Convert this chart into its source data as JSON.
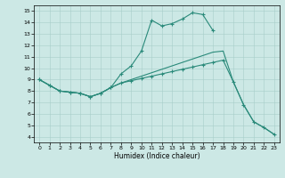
{
  "xlabel": "Humidex (Indice chaleur)",
  "xlim": [
    -0.5,
    23.5
  ],
  "ylim": [
    3.5,
    15.5
  ],
  "xticks": [
    0,
    1,
    2,
    3,
    4,
    5,
    6,
    7,
    8,
    9,
    10,
    11,
    12,
    13,
    14,
    15,
    16,
    17,
    18,
    19,
    20,
    21,
    22,
    23
  ],
  "yticks": [
    4,
    5,
    6,
    7,
    8,
    9,
    10,
    11,
    12,
    13,
    14,
    15
  ],
  "line_color": "#2a8a7a",
  "bg_color": "#cce8e5",
  "line1_x": [
    0,
    1,
    2,
    3,
    4,
    5,
    6,
    7,
    8,
    9,
    10,
    11,
    12,
    13,
    14,
    15,
    16,
    17
  ],
  "line1_y": [
    9.0,
    8.5,
    8.0,
    7.9,
    7.8,
    7.5,
    7.8,
    8.3,
    9.5,
    10.2,
    11.5,
    14.2,
    13.7,
    13.9,
    14.3,
    14.85,
    14.7,
    13.3
  ],
  "line2_x": [
    0,
    1,
    2,
    3,
    4,
    5,
    6,
    7,
    8,
    9,
    10,
    11,
    12,
    13,
    14,
    15,
    16,
    17,
    18,
    19,
    20,
    21,
    22,
    23
  ],
  "line2_y": [
    9.0,
    8.5,
    8.0,
    7.9,
    7.8,
    7.5,
    7.8,
    8.3,
    8.7,
    9.0,
    9.3,
    9.6,
    9.9,
    10.2,
    10.5,
    10.8,
    11.1,
    11.4,
    11.5,
    8.8,
    6.8,
    5.3,
    4.8,
    4.2
  ],
  "line3_x": [
    0,
    1,
    2,
    3,
    4,
    5,
    6,
    7,
    8,
    9,
    10,
    11,
    12,
    13,
    14,
    15,
    16,
    17,
    18,
    19,
    20,
    21,
    22,
    23
  ],
  "line3_y": [
    9.0,
    8.5,
    8.0,
    7.9,
    7.8,
    7.5,
    7.8,
    8.3,
    8.7,
    8.9,
    9.1,
    9.3,
    9.5,
    9.7,
    9.9,
    10.1,
    10.3,
    10.5,
    10.7,
    8.8,
    6.8,
    5.3,
    4.8,
    4.2
  ]
}
